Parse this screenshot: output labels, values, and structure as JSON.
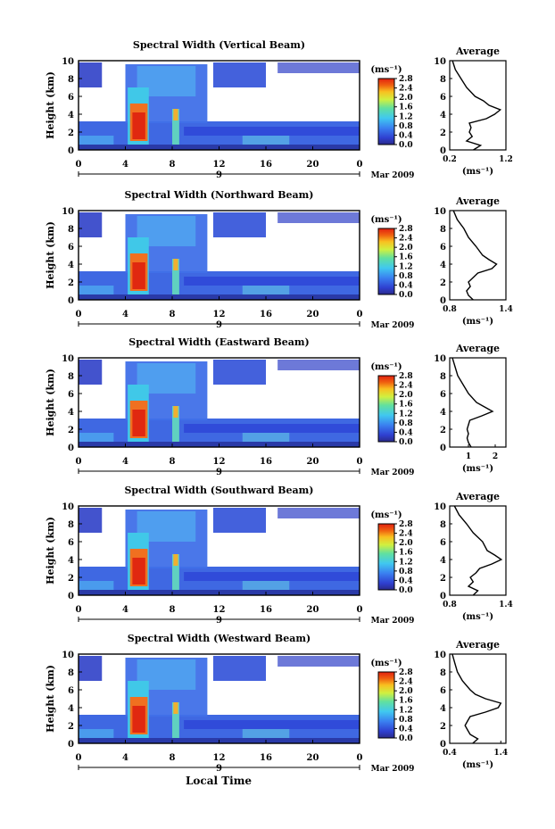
{
  "shared": {
    "x_ticks": [
      "0",
      "4",
      "8",
      "12",
      "16",
      "20",
      "0"
    ],
    "day_label": "9",
    "month_label": "Mar 2009",
    "y_ticks": [
      "0",
      "2",
      "4",
      "6",
      "8",
      "10"
    ],
    "ylabel": "Height (km)",
    "colorbar_unit": "(ms⁻¹)",
    "colorbar_ticks": [
      "0.0",
      "0.4",
      "0.8",
      "1.2",
      "1.6",
      "2.0",
      "2.4",
      "2.8"
    ],
    "avg_title": "Average",
    "avg_xlabel": "(ms⁻¹)",
    "xlabel": "Local Time",
    "colors": {
      "high": "#e02010",
      "mid": "#60c0f0",
      "low": "#3050e0",
      "floor": "#202a70"
    }
  },
  "chart_data": [
    {
      "type": "heatmap",
      "title": "Spectral Width (Vertical Beam)",
      "xlim": [
        0,
        24
      ],
      "ylim": [
        0,
        10
      ],
      "avg_ticks": [
        "0.2",
        "1.2"
      ],
      "avg_xlim": [
        0.2,
        1.2
      ],
      "avg_profile": [
        [
          0,
          0.62
        ],
        [
          0.5,
          0.75
        ],
        [
          1,
          0.5
        ],
        [
          1.5,
          0.6
        ],
        [
          2,
          0.55
        ],
        [
          2.5,
          0.58
        ],
        [
          3,
          0.55
        ],
        [
          3.5,
          0.85
        ],
        [
          4,
          1.0
        ],
        [
          4.5,
          1.1
        ],
        [
          5,
          0.9
        ],
        [
          5.5,
          0.8
        ],
        [
          6,
          0.65
        ],
        [
          7,
          0.5
        ],
        [
          8,
          0.4
        ],
        [
          9,
          0.3
        ],
        [
          10,
          0.25
        ]
      ]
    },
    {
      "type": "heatmap",
      "title": "Spectral Width (Northward Beam)",
      "xlim": [
        0,
        24
      ],
      "ylim": [
        0,
        10
      ],
      "avg_ticks": [
        "0.8",
        "1.4"
      ],
      "avg_xlim": [
        0.8,
        1.4
      ],
      "avg_profile": [
        [
          0,
          1.05
        ],
        [
          0.5,
          1.0
        ],
        [
          1,
          0.98
        ],
        [
          1.5,
          1.02
        ],
        [
          2,
          1.0
        ],
        [
          2.5,
          1.05
        ],
        [
          3,
          1.1
        ],
        [
          3.5,
          1.25
        ],
        [
          4,
          1.3
        ],
        [
          4.5,
          1.22
        ],
        [
          5,
          1.15
        ],
        [
          6,
          1.08
        ],
        [
          7,
          1.0
        ],
        [
          8,
          0.95
        ],
        [
          9,
          0.88
        ],
        [
          10,
          0.84
        ]
      ]
    },
    {
      "type": "heatmap",
      "title": "Spectral Width (Eastward Beam)",
      "xlim": [
        0,
        24
      ],
      "ylim": [
        0,
        10
      ],
      "avg_ticks": [
        "1",
        "2"
      ],
      "avg_xlim": [
        0.3,
        2.4
      ],
      "avg_profile": [
        [
          0,
          1.1
        ],
        [
          0.5,
          1.0
        ],
        [
          1,
          0.95
        ],
        [
          1.5,
          1.0
        ],
        [
          2,
          0.95
        ],
        [
          2.5,
          1.0
        ],
        [
          3,
          1.05
        ],
        [
          3.5,
          1.5
        ],
        [
          4,
          1.9
        ],
        [
          4.5,
          1.6
        ],
        [
          5,
          1.3
        ],
        [
          6,
          1.0
        ],
        [
          7,
          0.8
        ],
        [
          8,
          0.6
        ],
        [
          9,
          0.5
        ],
        [
          10,
          0.4
        ]
      ]
    },
    {
      "type": "heatmap",
      "title": "Spectral Width (Southward Beam)",
      "xlim": [
        0,
        24
      ],
      "ylim": [
        0,
        10
      ],
      "avg_ticks": [
        "0.8",
        "1.4"
      ],
      "avg_xlim": [
        0.8,
        1.4
      ],
      "avg_profile": [
        [
          0,
          1.05
        ],
        [
          0.5,
          1.1
        ],
        [
          1,
          1.0
        ],
        [
          1.5,
          1.05
        ],
        [
          2,
          1.02
        ],
        [
          2.5,
          1.08
        ],
        [
          3,
          1.12
        ],
        [
          3.5,
          1.25
        ],
        [
          4,
          1.35
        ],
        [
          4.5,
          1.28
        ],
        [
          5,
          1.2
        ],
        [
          6,
          1.15
        ],
        [
          7,
          1.05
        ],
        [
          8,
          0.98
        ],
        [
          9,
          0.9
        ],
        [
          10,
          0.85
        ]
      ]
    },
    {
      "type": "heatmap",
      "title": "Spectral Width (Westward Beam)",
      "xlim": [
        0,
        24
      ],
      "ylim": [
        0,
        10
      ],
      "avg_ticks": [
        "0.4",
        "1.4"
      ],
      "avg_xlim": [
        0.4,
        1.5
      ],
      "avg_profile": [
        [
          0,
          0.85
        ],
        [
          0.5,
          0.95
        ],
        [
          1,
          0.8
        ],
        [
          1.5,
          0.75
        ],
        [
          2,
          0.7
        ],
        [
          2.5,
          0.75
        ],
        [
          3,
          0.8
        ],
        [
          3.5,
          1.1
        ],
        [
          4,
          1.35
        ],
        [
          4.5,
          1.4
        ],
        [
          5,
          1.1
        ],
        [
          5.5,
          0.9
        ],
        [
          6,
          0.8
        ],
        [
          7,
          0.65
        ],
        [
          8,
          0.55
        ],
        [
          9,
          0.5
        ],
        [
          10,
          0.45
        ]
      ]
    }
  ]
}
